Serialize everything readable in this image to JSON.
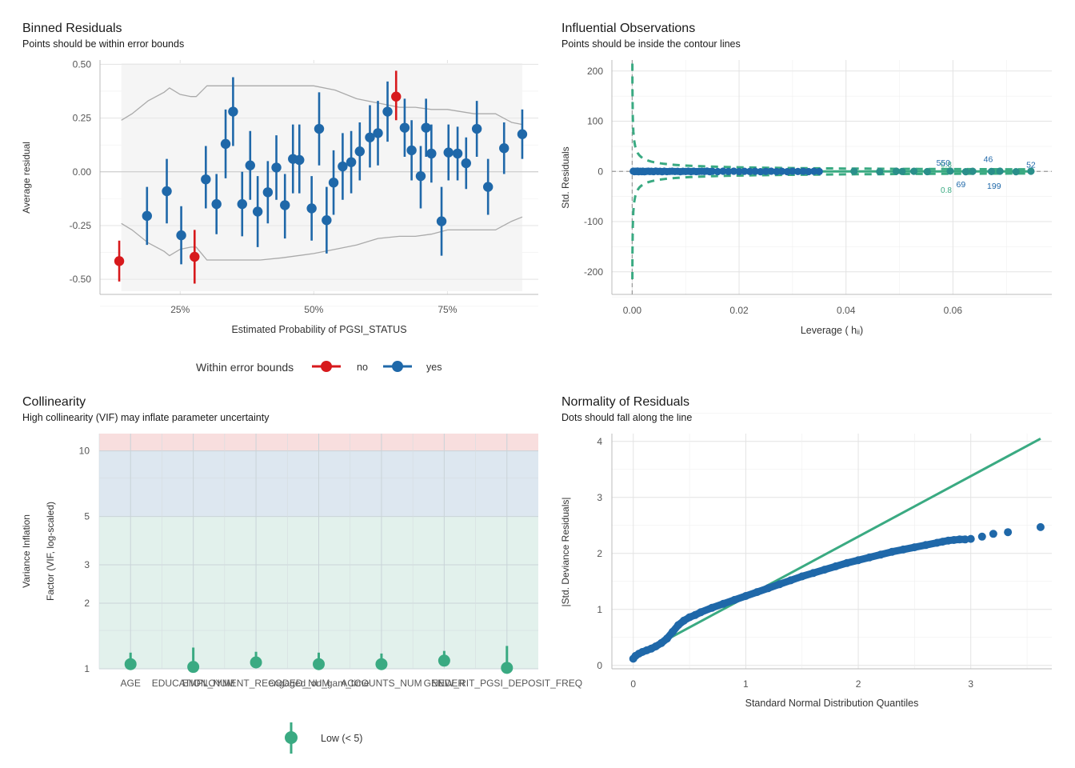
{
  "colors": {
    "blue": "#1f68a9",
    "red": "#d7191c",
    "green": "#3aaa82",
    "panel_bg": "#f5f5f5",
    "grid": "#e3e3e3",
    "band_grey": "#aaaaaa",
    "vif_high": "#f8dede",
    "vif_moderate": "#dde7f0",
    "vif_low": "#e2f1ec"
  },
  "chart_data": [
    {
      "type": "scatter",
      "title": "Binned Residuals",
      "subtitle": "Points should be within error bounds",
      "xlabel": "Estimated Probability of PGSI_STATUS",
      "ylabel": "Average residual",
      "x_ticks": [
        "25%",
        "50%",
        "75%"
      ],
      "x_tick_values": [
        0.25,
        0.5,
        0.75
      ],
      "y_ticks": [
        "0.50",
        "0.25",
        "0.00",
        "-0.25",
        "-0.50"
      ],
      "y_tick_values": [
        0.5,
        0.25,
        0,
        -0.25,
        -0.5
      ],
      "xlim": [
        0.1,
        0.92
      ],
      "ylim": [
        -0.57,
        0.52
      ],
      "legend_title": "Within error bounds",
      "legend": [
        "no",
        "yes"
      ],
      "legend_position": "bottom",
      "band_upper": [
        [
          0.14,
          0.24
        ],
        [
          0.16,
          0.27
        ],
        [
          0.19,
          0.33
        ],
        [
          0.22,
          0.37
        ],
        [
          0.23,
          0.39
        ],
        [
          0.25,
          0.36
        ],
        [
          0.27,
          0.35
        ],
        [
          0.28,
          0.35
        ],
        [
          0.3,
          0.4
        ],
        [
          0.32,
          0.4
        ],
        [
          0.35,
          0.4
        ],
        [
          0.4,
          0.4
        ],
        [
          0.44,
          0.4
        ],
        [
          0.5,
          0.4
        ],
        [
          0.54,
          0.38
        ],
        [
          0.58,
          0.34
        ],
        [
          0.62,
          0.32
        ],
        [
          0.66,
          0.3
        ],
        [
          0.69,
          0.3
        ],
        [
          0.72,
          0.29
        ],
        [
          0.75,
          0.29
        ],
        [
          0.8,
          0.27
        ],
        [
          0.84,
          0.27
        ],
        [
          0.87,
          0.23
        ],
        [
          0.89,
          0.22
        ]
      ],
      "band_lower": [
        [
          0.14,
          -0.24
        ],
        [
          0.16,
          -0.27
        ],
        [
          0.19,
          -0.33
        ],
        [
          0.22,
          -0.37
        ],
        [
          0.23,
          -0.39
        ],
        [
          0.25,
          -0.36
        ],
        [
          0.27,
          -0.35
        ],
        [
          0.28,
          -0.35
        ],
        [
          0.3,
          -0.41
        ],
        [
          0.35,
          -0.41
        ],
        [
          0.4,
          -0.41
        ],
        [
          0.44,
          -0.4
        ],
        [
          0.5,
          -0.38
        ],
        [
          0.54,
          -0.36
        ],
        [
          0.58,
          -0.34
        ],
        [
          0.62,
          -0.31
        ],
        [
          0.66,
          -0.3
        ],
        [
          0.69,
          -0.3
        ],
        [
          0.72,
          -0.29
        ],
        [
          0.75,
          -0.27
        ],
        [
          0.8,
          -0.27
        ],
        [
          0.84,
          -0.27
        ],
        [
          0.87,
          -0.23
        ],
        [
          0.89,
          -0.21
        ]
      ],
      "series": [
        {
          "name": "no",
          "points": [
            {
              "x": 0.136,
              "y": -0.415,
              "lo": -0.51,
              "hi": -0.32
            },
            {
              "x": 0.277,
              "y": -0.395,
              "lo": -0.52,
              "hi": -0.27
            },
            {
              "x": 0.654,
              "y": 0.35,
              "lo": 0.24,
              "hi": 0.47
            }
          ]
        },
        {
          "name": "yes",
          "points": [
            {
              "x": 0.188,
              "y": -0.205,
              "lo": -0.34,
              "hi": -0.07
            },
            {
              "x": 0.225,
              "y": -0.09,
              "lo": -0.24,
              "hi": 0.06
            },
            {
              "x": 0.252,
              "y": -0.295,
              "lo": -0.43,
              "hi": -0.16
            },
            {
              "x": 0.298,
              "y": -0.035,
              "lo": -0.17,
              "hi": 0.12
            },
            {
              "x": 0.318,
              "y": -0.15,
              "lo": -0.29,
              "hi": -0.01
            },
            {
              "x": 0.335,
              "y": 0.13,
              "lo": -0.03,
              "hi": 0.29
            },
            {
              "x": 0.349,
              "y": 0.28,
              "lo": 0.12,
              "hi": 0.44
            },
            {
              "x": 0.366,
              "y": -0.15,
              "lo": -0.3,
              "hi": 0.0
            },
            {
              "x": 0.381,
              "y": 0.03,
              "lo": -0.13,
              "hi": 0.19
            },
            {
              "x": 0.395,
              "y": -0.185,
              "lo": -0.35,
              "hi": -0.02
            },
            {
              "x": 0.414,
              "y": -0.095,
              "lo": -0.24,
              "hi": 0.05
            },
            {
              "x": 0.43,
              "y": 0.02,
              "lo": -0.13,
              "hi": 0.17
            },
            {
              "x": 0.446,
              "y": -0.155,
              "lo": -0.31,
              "hi": -0.01
            },
            {
              "x": 0.461,
              "y": 0.06,
              "lo": -0.1,
              "hi": 0.22
            },
            {
              "x": 0.473,
              "y": 0.055,
              "lo": -0.1,
              "hi": 0.22
            },
            {
              "x": 0.496,
              "y": -0.17,
              "lo": -0.32,
              "hi": -0.02
            },
            {
              "x": 0.51,
              "y": 0.2,
              "lo": 0.03,
              "hi": 0.37
            },
            {
              "x": 0.524,
              "y": -0.225,
              "lo": -0.38,
              "hi": -0.07
            },
            {
              "x": 0.537,
              "y": -0.05,
              "lo": -0.2,
              "hi": 0.1
            },
            {
              "x": 0.554,
              "y": 0.025,
              "lo": -0.13,
              "hi": 0.18
            },
            {
              "x": 0.57,
              "y": 0.045,
              "lo": -0.1,
              "hi": 0.19
            },
            {
              "x": 0.586,
              "y": 0.095,
              "lo": -0.04,
              "hi": 0.23
            },
            {
              "x": 0.605,
              "y": 0.16,
              "lo": 0.02,
              "hi": 0.31
            },
            {
              "x": 0.62,
              "y": 0.18,
              "lo": 0.03,
              "hi": 0.33
            },
            {
              "x": 0.638,
              "y": 0.28,
              "lo": 0.14,
              "hi": 0.42
            },
            {
              "x": 0.67,
              "y": 0.205,
              "lo": 0.07,
              "hi": 0.34
            },
            {
              "x": 0.683,
              "y": 0.1,
              "lo": -0.04,
              "hi": 0.24
            },
            {
              "x": 0.7,
              "y": -0.02,
              "lo": -0.17,
              "hi": 0.12
            },
            {
              "x": 0.71,
              "y": 0.205,
              "lo": 0.07,
              "hi": 0.34
            },
            {
              "x": 0.72,
              "y": 0.085,
              "lo": -0.05,
              "hi": 0.22
            },
            {
              "x": 0.739,
              "y": -0.23,
              "lo": -0.39,
              "hi": -0.07
            },
            {
              "x": 0.752,
              "y": 0.09,
              "lo": -0.04,
              "hi": 0.22
            },
            {
              "x": 0.769,
              "y": 0.085,
              "lo": -0.04,
              "hi": 0.21
            },
            {
              "x": 0.785,
              "y": 0.04,
              "lo": -0.08,
              "hi": 0.16
            },
            {
              "x": 0.805,
              "y": 0.2,
              "lo": 0.07,
              "hi": 0.33
            },
            {
              "x": 0.826,
              "y": -0.07,
              "lo": -0.2,
              "hi": 0.06
            },
            {
              "x": 0.856,
              "y": 0.11,
              "lo": -0.01,
              "hi": 0.23
            },
            {
              "x": 0.89,
              "y": 0.175,
              "lo": 0.06,
              "hi": 0.29
            }
          ]
        }
      ]
    },
    {
      "type": "scatter",
      "title": "Influential Observations",
      "subtitle": "Points should be inside the contour lines",
      "xlabel": "Leverage ( hᵢᵢ)",
      "ylabel": "Std. Residuals",
      "x_ticks": [
        "0.00",
        "0.02",
        "0.04",
        "0.06"
      ],
      "x_tick_values": [
        0,
        0.02,
        0.04,
        0.06
      ],
      "y_ticks": [
        "200",
        "100",
        "0",
        "-100",
        "-200"
      ],
      "y_tick_values": [
        200,
        100,
        0,
        -100,
        -200
      ],
      "xlim": [
        -0.0038,
        0.0785
      ],
      "ylim": [
        -245,
        222
      ],
      "contour_label_values": [
        "0.8",
        "0.8"
      ],
      "point_labels": [
        {
          "text": "550",
          "x": 0.0582,
          "y": 18
        },
        {
          "text": "46",
          "x": 0.0666,
          "y": 25
        },
        {
          "text": "52",
          "x": 0.0746,
          "y": 14
        },
        {
          "text": "69",
          "x": 0.0615,
          "y": -25
        },
        {
          "text": "199",
          "x": 0.0677,
          "y": -28
        }
      ],
      "points_x": [
        0.0002,
        0.0004,
        0.0006,
        0.0008,
        0.001,
        0.0012,
        0.0015,
        0.0018,
        0.002,
        0.0023,
        0.0026,
        0.003,
        0.0033,
        0.0036,
        0.004,
        0.0044,
        0.0048,
        0.0052,
        0.0056,
        0.006,
        0.0065,
        0.007,
        0.0075,
        0.008,
        0.0085,
        0.009,
        0.0095,
        0.01,
        0.0105,
        0.011,
        0.0115,
        0.012,
        0.0125,
        0.013,
        0.0135,
        0.014,
        0.0145,
        0.015,
        0.016,
        0.017,
        0.018,
        0.019,
        0.02,
        0.021,
        0.022,
        0.023,
        0.024,
        0.025,
        0.026,
        0.027,
        0.028,
        0.029,
        0.03,
        0.031,
        0.032,
        0.033,
        0.034,
        0.035,
        0.0415,
        0.0463,
        0.0494,
        0.0505,
        0.0527,
        0.0552,
        0.0595,
        0.0624,
        0.0637,
        0.0672,
        0.0688,
        0.0718,
        0.0746
      ],
      "points_y": [
        0.5,
        -0.4,
        0.3,
        -0.2,
        0.6,
        -0.5,
        0.2,
        -0.3,
        0.4,
        -0.6,
        0.1,
        0.5,
        -0.2,
        0.3,
        -0.4,
        0.6,
        -0.1,
        0.2,
        -0.5,
        0.4,
        -0.3,
        0.1,
        0.5,
        -0.2,
        0.3,
        -0.6,
        0.2,
        -0.1,
        0.4,
        -0.3,
        0.5,
        -0.4,
        0.1,
        0.3,
        -0.2,
        0.6,
        -0.5,
        0.2,
        -0.3,
        0.4,
        -0.1,
        0.5,
        -0.4,
        0.2,
        -0.2,
        0.3,
        -0.5,
        0.1,
        0.4,
        -0.3,
        0.2,
        -0.6,
        0.5,
        -0.1,
        0.3,
        -0.4,
        0.2,
        -0.2,
        0.5,
        -0.3,
        0.4,
        -0.2,
        0.3,
        -0.4,
        0.6,
        -0.5,
        0.3,
        -0.2,
        0.4,
        -0.6,
        0.5
      ]
    },
    {
      "type": "scatter",
      "title": "Collinearity",
      "subtitle": "High collinearity (VIF) may inflate parameter uncertainty",
      "xlabel": "",
      "ylabel_line1": "Variance Inflation",
      "ylabel_line2": "Factor (VIF, log-scaled)",
      "y_ticks": [
        "10",
        "5",
        "3",
        "2",
        "1"
      ],
      "y_tick_values": [
        10,
        5,
        3,
        2,
        1
      ],
      "y_scale": "log",
      "ylim": [
        1,
        12
      ],
      "categories": [
        "AGE",
        "EDUCATION_NUM",
        "EMPLOYMENT_RECODED_NUM",
        "engaged_on_gam_time",
        "ACCOUNTS_NUM",
        "GENDER",
        "NEW_RIT_PGSI_DEPOSIT_FREQ"
      ],
      "vif": [
        1.05,
        1.02,
        1.07,
        1.05,
        1.05,
        1.09,
        1.01
      ],
      "ci_high": [
        1.09,
        1.15,
        1.1,
        1.09,
        1.08,
        1.11,
        1.17
      ],
      "ci_low": [
        1.02,
        1.0,
        1.04,
        1.02,
        1.02,
        1.07,
        1.0
      ],
      "legend": [
        "Low (< 5)"
      ],
      "legend_position": "bottom"
    },
    {
      "type": "scatter",
      "title": "Normality of Residuals",
      "subtitle": "Dots should fall along the line",
      "xlabel": "Standard Normal Distribution Quantiles",
      "ylabel": "|Std. Deviance Residuals|",
      "x_ticks": [
        "0",
        "1",
        "2",
        "3"
      ],
      "x_tick_values": [
        0,
        1,
        2,
        3
      ],
      "y_ticks": [
        "4",
        "3",
        "2",
        "1",
        "0"
      ],
      "y_tick_values": [
        4,
        3,
        2,
        1,
        0
      ],
      "xlim": [
        -0.19,
        3.72
      ],
      "ylim": [
        -0.06,
        4.14
      ],
      "reference_line": [
        [
          0,
          0.14
        ],
        [
          3.62,
          4.05
        ]
      ],
      "points_x": [
        0,
        0.02,
        0.05,
        0.08,
        0.12,
        0.16,
        0.2,
        0.25,
        0.3,
        0.35,
        0.4,
        0.45,
        0.5,
        0.55,
        0.6,
        0.7,
        0.8,
        0.9,
        1.0,
        1.1,
        1.2,
        1.3,
        1.4,
        1.5,
        1.6,
        1.7,
        1.8,
        1.9,
        2.0,
        2.1,
        2.2,
        2.3,
        2.4,
        2.5,
        2.6,
        2.7,
        2.75,
        2.8,
        2.85,
        2.9,
        2.95,
        3.0,
        3.1,
        3.2,
        3.33,
        3.62
      ],
      "points_y": [
        0.12,
        0.17,
        0.21,
        0.24,
        0.27,
        0.3,
        0.34,
        0.4,
        0.48,
        0.6,
        0.72,
        0.8,
        0.86,
        0.9,
        0.95,
        1.03,
        1.1,
        1.17,
        1.24,
        1.31,
        1.38,
        1.45,
        1.52,
        1.59,
        1.65,
        1.71,
        1.77,
        1.83,
        1.88,
        1.93,
        1.98,
        2.03,
        2.07,
        2.11,
        2.15,
        2.19,
        2.21,
        2.23,
        2.24,
        2.25,
        2.25,
        2.26,
        2.3,
        2.35,
        2.38,
        2.47
      ]
    }
  ]
}
